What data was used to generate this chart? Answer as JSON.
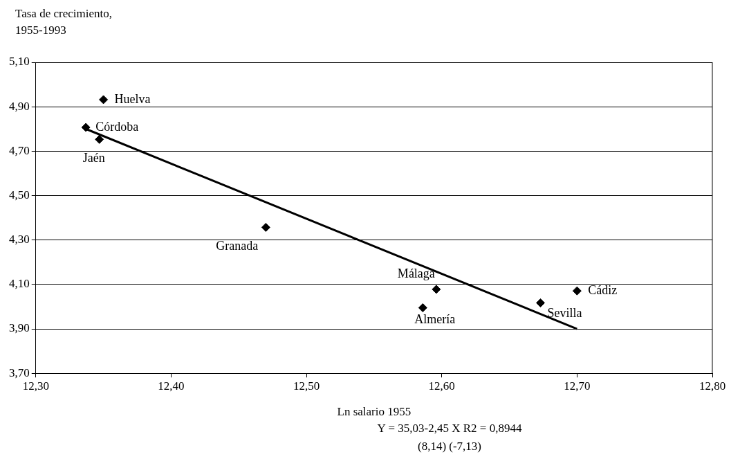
{
  "chart_data": {
    "type": "scatter",
    "ylabel": "Tasa de crecimiento,\n1955-1993",
    "xlabel": "Ln salario 1955",
    "xlim": [
      12.3,
      12.8
    ],
    "xticks": [
      {
        "value": 12.3,
        "label": "12,30"
      },
      {
        "value": 12.4,
        "label": "12,40"
      },
      {
        "value": 12.5,
        "label": "12,50"
      },
      {
        "value": 12.6,
        "label": "12,60"
      },
      {
        "value": 12.7,
        "label": "12,70"
      },
      {
        "value": 12.8,
        "label": "12,80"
      }
    ],
    "ylim": [
      3.7,
      5.1
    ],
    "yticks": [
      {
        "value": 3.7,
        "label": "3,70"
      },
      {
        "value": 3.9,
        "label": "3,90"
      },
      {
        "value": 4.1,
        "label": "4,10"
      },
      {
        "value": 4.3,
        "label": "4,30"
      },
      {
        "value": 4.5,
        "label": "4,50"
      },
      {
        "value": 4.7,
        "label": "4,70"
      },
      {
        "value": 4.9,
        "label": "4,90"
      },
      {
        "value": 5.1,
        "label": "5,10"
      }
    ],
    "grid": "y",
    "legend": false,
    "marker": "diamond",
    "series": [
      {
        "type": "scatter",
        "color": "#000000",
        "x": [
          12.35,
          12.337,
          12.347,
          12.47,
          12.596,
          12.586,
          12.673,
          12.7
        ],
        "values": [
          4.932,
          4.807,
          4.753,
          4.357,
          4.078,
          3.995,
          4.017,
          4.071
        ]
      },
      {
        "type": "line",
        "color": "#000000",
        "marker": "none",
        "x": [
          12.337,
          12.7
        ],
        "values": [
          4.8,
          3.9
        ]
      }
    ],
    "annotations": [
      {
        "text": "Huelva",
        "x": 12.35,
        "y": 4.932
      },
      {
        "text": "Córdoba",
        "x": 12.337,
        "y": 4.807
      },
      {
        "text": "Jaén",
        "x": 12.347,
        "y": 4.753
      },
      {
        "text": "Granada",
        "x": 12.47,
        "y": 4.357
      },
      {
        "text": "Málaga",
        "x": 12.596,
        "y": 4.078
      },
      {
        "text": "Almería",
        "x": 12.586,
        "y": 3.995
      },
      {
        "text": "Sevilla",
        "x": 12.673,
        "y": 4.017
      },
      {
        "text": "Cádiz",
        "x": 12.7,
        "y": 4.071
      },
      "Y = 35,03-2,45 X   R2 = 0,8944",
      "(8,14)   (-7,13)"
    ]
  }
}
